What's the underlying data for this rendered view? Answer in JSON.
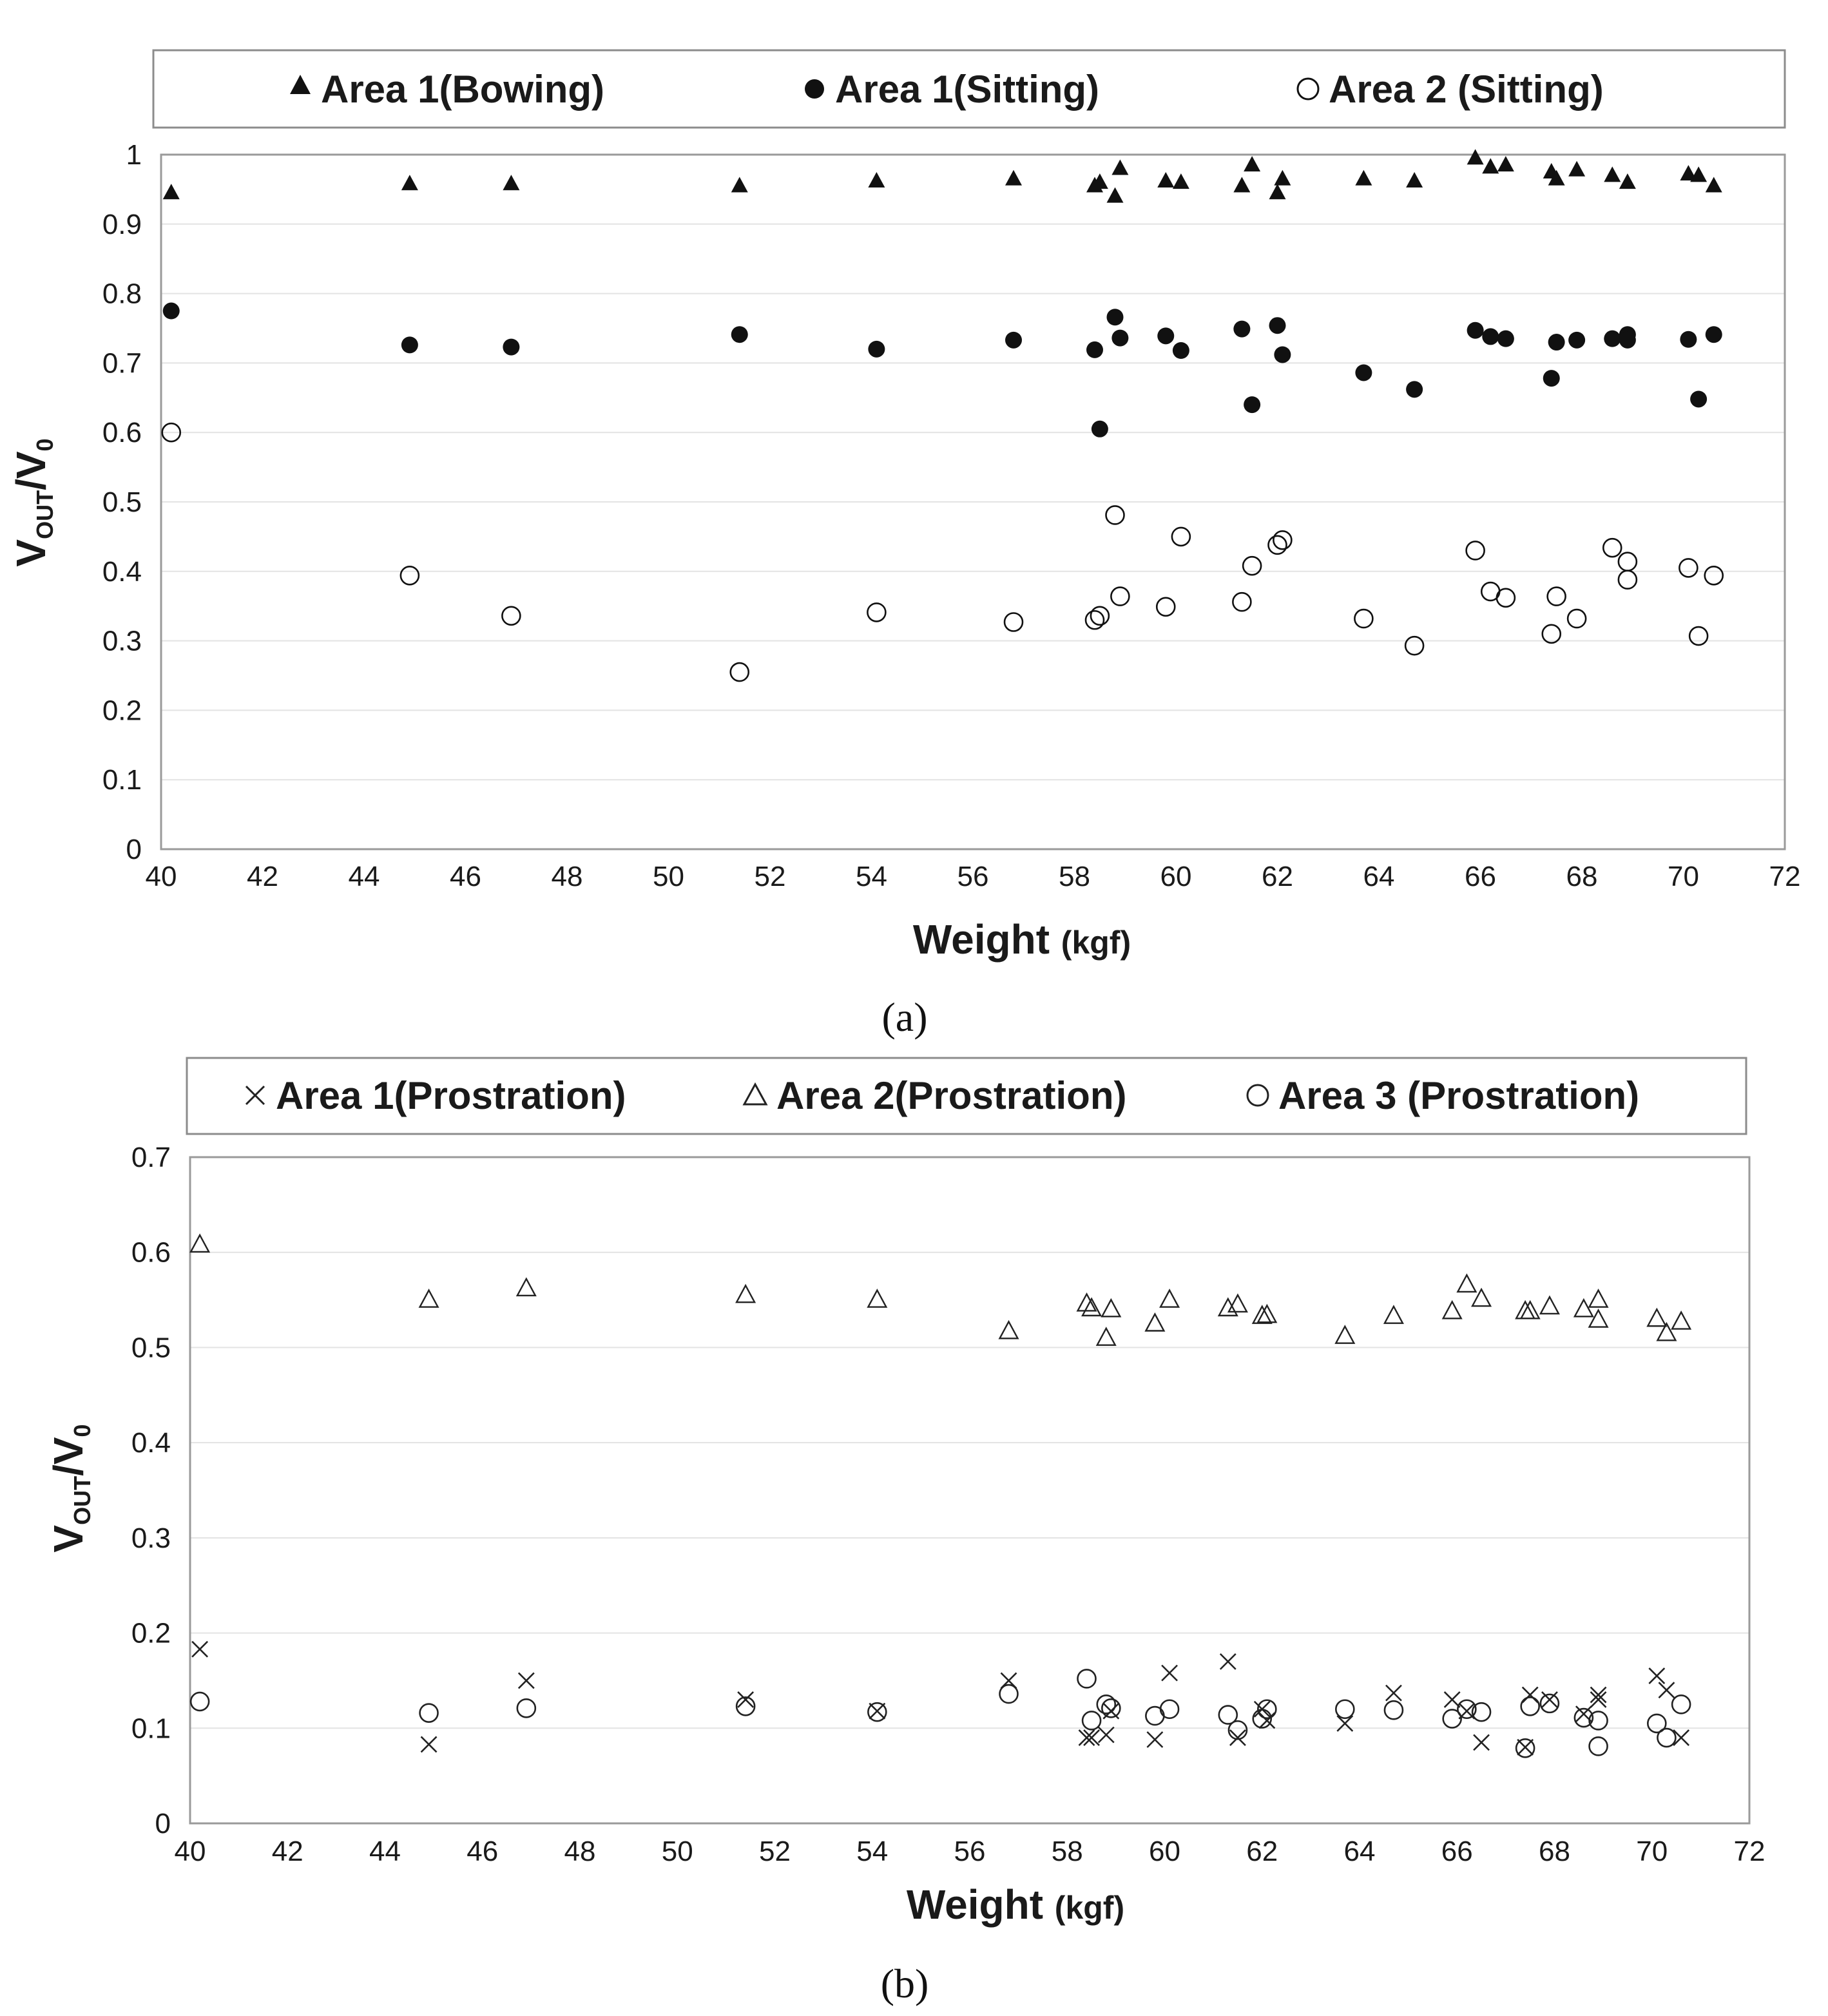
{
  "chart_data": [
    {
      "type": "scatter",
      "panel_label": "(a)",
      "xlabel": {
        "main": "Weight",
        "unit": "(kgf)"
      },
      "ylabel": {
        "v": "V",
        "out": "OUT",
        "slash": "/V",
        "zero": "0"
      },
      "xlim": [
        40,
        72
      ],
      "ylim": [
        0,
        1
      ],
      "xticks": [
        40,
        42,
        44,
        46,
        48,
        50,
        52,
        54,
        56,
        58,
        60,
        62,
        64,
        66,
        68,
        70,
        72
      ],
      "yticks": [
        0,
        0.1,
        0.2,
        0.3,
        0.4,
        0.5,
        0.6,
        0.7,
        0.8,
        0.9,
        1
      ],
      "yticklabels": [
        "0",
        "0.1",
        "0.2",
        "0.3",
        "0.4",
        "0.5",
        "0.6",
        "0.7",
        "0.8",
        "0.9",
        "1"
      ],
      "grid": true,
      "legend_position": "top",
      "colors": {
        "primary": "#111111",
        "grid": "#e3e3e3",
        "frame": "#9a9a9a"
      },
      "series": [
        {
          "name": "Area 1(Bowing)",
          "marker": "filled-triangle",
          "points": [
            [
              40.2,
              0.945
            ],
            [
              44.9,
              0.958
            ],
            [
              46.9,
              0.958
            ],
            [
              51.4,
              0.955
            ],
            [
              54.1,
              0.962
            ],
            [
              56.8,
              0.965
            ],
            [
              58.4,
              0.955
            ],
            [
              58.5,
              0.96
            ],
            [
              58.8,
              0.94
            ],
            [
              58.9,
              0.98
            ],
            [
              59.8,
              0.962
            ],
            [
              60.1,
              0.96
            ],
            [
              61.3,
              0.955
            ],
            [
              61.5,
              0.985
            ],
            [
              62.0,
              0.945
            ],
            [
              62.1,
              0.965
            ],
            [
              63.7,
              0.965
            ],
            [
              64.7,
              0.962
            ],
            [
              65.9,
              0.995
            ],
            [
              66.2,
              0.982
            ],
            [
              66.5,
              0.985
            ],
            [
              67.4,
              0.975
            ],
            [
              67.5,
              0.965
            ],
            [
              67.9,
              0.978
            ],
            [
              68.6,
              0.97
            ],
            [
              68.9,
              0.96
            ],
            [
              70.1,
              0.972
            ],
            [
              70.3,
              0.97
            ],
            [
              70.6,
              0.955
            ]
          ]
        },
        {
          "name": "Area 1(Sitting)",
          "marker": "filled-circle",
          "points": [
            [
              40.2,
              0.775
            ],
            [
              44.9,
              0.726
            ],
            [
              46.9,
              0.723
            ],
            [
              51.4,
              0.741
            ],
            [
              54.1,
              0.72
            ],
            [
              56.8,
              0.733
            ],
            [
              58.4,
              0.719
            ],
            [
              58.5,
              0.605
            ],
            [
              58.8,
              0.766
            ],
            [
              58.9,
              0.736
            ],
            [
              59.8,
              0.739
            ],
            [
              60.1,
              0.718
            ],
            [
              61.3,
              0.749
            ],
            [
              61.5,
              0.64
            ],
            [
              62.0,
              0.754
            ],
            [
              62.1,
              0.712
            ],
            [
              63.7,
              0.686
            ],
            [
              64.7,
              0.662
            ],
            [
              65.9,
              0.747
            ],
            [
              66.2,
              0.738
            ],
            [
              66.5,
              0.735
            ],
            [
              67.4,
              0.678
            ],
            [
              67.5,
              0.73
            ],
            [
              67.9,
              0.733
            ],
            [
              68.6,
              0.735
            ],
            [
              68.9,
              0.741
            ],
            [
              68.9,
              0.733
            ],
            [
              70.1,
              0.734
            ],
            [
              70.3,
              0.648
            ],
            [
              70.6,
              0.741
            ]
          ]
        },
        {
          "name": "Area 2 (Sitting)",
          "marker": "open-circle",
          "points": [
            [
              40.2,
              0.6
            ],
            [
              44.9,
              0.394
            ],
            [
              46.9,
              0.336
            ],
            [
              51.4,
              0.255
            ],
            [
              54.1,
              0.341
            ],
            [
              56.8,
              0.327
            ],
            [
              58.4,
              0.33
            ],
            [
              58.5,
              0.336
            ],
            [
              58.8,
              0.481
            ],
            [
              58.9,
              0.364
            ],
            [
              59.8,
              0.349
            ],
            [
              60.1,
              0.45
            ],
            [
              61.3,
              0.356
            ],
            [
              61.5,
              0.408
            ],
            [
              62.0,
              0.438
            ],
            [
              62.1,
              0.445
            ],
            [
              63.7,
              0.332
            ],
            [
              64.7,
              0.293
            ],
            [
              65.9,
              0.43
            ],
            [
              66.2,
              0.371
            ],
            [
              66.5,
              0.362
            ],
            [
              67.4,
              0.31
            ],
            [
              67.5,
              0.364
            ],
            [
              67.9,
              0.332
            ],
            [
              68.6,
              0.434
            ],
            [
              68.9,
              0.414
            ],
            [
              68.9,
              0.388
            ],
            [
              70.1,
              0.405
            ],
            [
              70.3,
              0.307
            ],
            [
              70.6,
              0.394
            ]
          ]
        }
      ]
    },
    {
      "type": "scatter",
      "panel_label": "(b)",
      "xlabel": {
        "main": "Weight",
        "unit": "(kgf)"
      },
      "ylabel": {
        "v": "V",
        "out": "OUT",
        "slash": "/V",
        "zero": "0"
      },
      "xlim": [
        40,
        72
      ],
      "ylim": [
        0,
        0.7
      ],
      "xticks": [
        40,
        42,
        44,
        46,
        48,
        50,
        52,
        54,
        56,
        58,
        60,
        62,
        64,
        66,
        68,
        70,
        72
      ],
      "yticks": [
        0,
        0.1,
        0.2,
        0.3,
        0.4,
        0.5,
        0.6,
        0.7
      ],
      "yticklabels": [
        "0",
        "0.1",
        "0.2",
        "0.3",
        "0.4",
        "0.5",
        "0.6",
        "0.7"
      ],
      "grid": true,
      "legend_position": "top",
      "colors": {
        "primary": "#222222",
        "grid": "#e3e3e3",
        "frame": "#9a9a9a"
      },
      "series": [
        {
          "name": "Area 1(Prostration)",
          "marker": "cross",
          "points": [
            [
              40.2,
              0.183
            ],
            [
              44.9,
              0.083
            ],
            [
              46.9,
              0.15
            ],
            [
              51.4,
              0.13
            ],
            [
              54.1,
              0.118
            ],
            [
              56.8,
              0.15
            ],
            [
              58.4,
              0.09
            ],
            [
              58.5,
              0.09
            ],
            [
              58.8,
              0.093
            ],
            [
              58.9,
              0.118
            ],
            [
              59.8,
              0.088
            ],
            [
              60.1,
              0.158
            ],
            [
              61.3,
              0.17
            ],
            [
              61.5,
              0.09
            ],
            [
              62.0,
              0.12
            ],
            [
              62.1,
              0.108
            ],
            [
              63.7,
              0.105
            ],
            [
              64.7,
              0.137
            ],
            [
              65.9,
              0.13
            ],
            [
              66.2,
              0.118
            ],
            [
              66.5,
              0.085
            ],
            [
              67.4,
              0.08
            ],
            [
              67.5,
              0.135
            ],
            [
              67.9,
              0.13
            ],
            [
              68.6,
              0.115
            ],
            [
              68.9,
              0.13
            ],
            [
              68.9,
              0.135
            ],
            [
              70.1,
              0.155
            ],
            [
              70.3,
              0.14
            ],
            [
              70.6,
              0.09
            ]
          ]
        },
        {
          "name": "Area 2(Prostration)",
          "marker": "open-triangle",
          "points": [
            [
              40.2,
              0.608
            ],
            [
              44.9,
              0.55
            ],
            [
              46.9,
              0.562
            ],
            [
              51.4,
              0.555
            ],
            [
              54.1,
              0.55
            ],
            [
              56.8,
              0.517
            ],
            [
              58.4,
              0.546
            ],
            [
              58.5,
              0.541
            ],
            [
              58.8,
              0.51
            ],
            [
              58.9,
              0.54
            ],
            [
              59.8,
              0.525
            ],
            [
              60.1,
              0.55
            ],
            [
              61.3,
              0.541
            ],
            [
              61.5,
              0.545
            ],
            [
              62.0,
              0.533
            ],
            [
              62.1,
              0.534
            ],
            [
              63.7,
              0.512
            ],
            [
              64.7,
              0.533
            ],
            [
              65.9,
              0.538
            ],
            [
              66.2,
              0.566
            ],
            [
              66.5,
              0.551
            ],
            [
              67.4,
              0.538
            ],
            [
              67.5,
              0.538
            ],
            [
              67.9,
              0.543
            ],
            [
              68.6,
              0.54
            ],
            [
              68.9,
              0.55
            ],
            [
              68.9,
              0.529
            ],
            [
              70.1,
              0.53
            ],
            [
              70.3,
              0.515
            ],
            [
              70.6,
              0.527
            ]
          ]
        },
        {
          "name": "Area 3 (Prostration)",
          "marker": "open-circle",
          "points": [
            [
              40.2,
              0.128
            ],
            [
              44.9,
              0.116
            ],
            [
              46.9,
              0.121
            ],
            [
              51.4,
              0.123
            ],
            [
              54.1,
              0.117
            ],
            [
              56.8,
              0.136
            ],
            [
              58.4,
              0.152
            ],
            [
              58.5,
              0.108
            ],
            [
              58.8,
              0.125
            ],
            [
              58.9,
              0.121
            ],
            [
              59.8,
              0.113
            ],
            [
              60.1,
              0.12
            ],
            [
              61.3,
              0.114
            ],
            [
              61.5,
              0.098
            ],
            [
              62.0,
              0.11
            ],
            [
              62.1,
              0.12
            ],
            [
              63.7,
              0.12
            ],
            [
              64.7,
              0.119
            ],
            [
              65.9,
              0.11
            ],
            [
              66.2,
              0.12
            ],
            [
              66.5,
              0.117
            ],
            [
              67.4,
              0.079
            ],
            [
              67.5,
              0.123
            ],
            [
              67.9,
              0.126
            ],
            [
              68.6,
              0.111
            ],
            [
              68.9,
              0.108
            ],
            [
              68.9,
              0.081
            ],
            [
              70.1,
              0.105
            ],
            [
              70.3,
              0.09
            ],
            [
              70.6,
              0.125
            ]
          ]
        }
      ]
    }
  ]
}
